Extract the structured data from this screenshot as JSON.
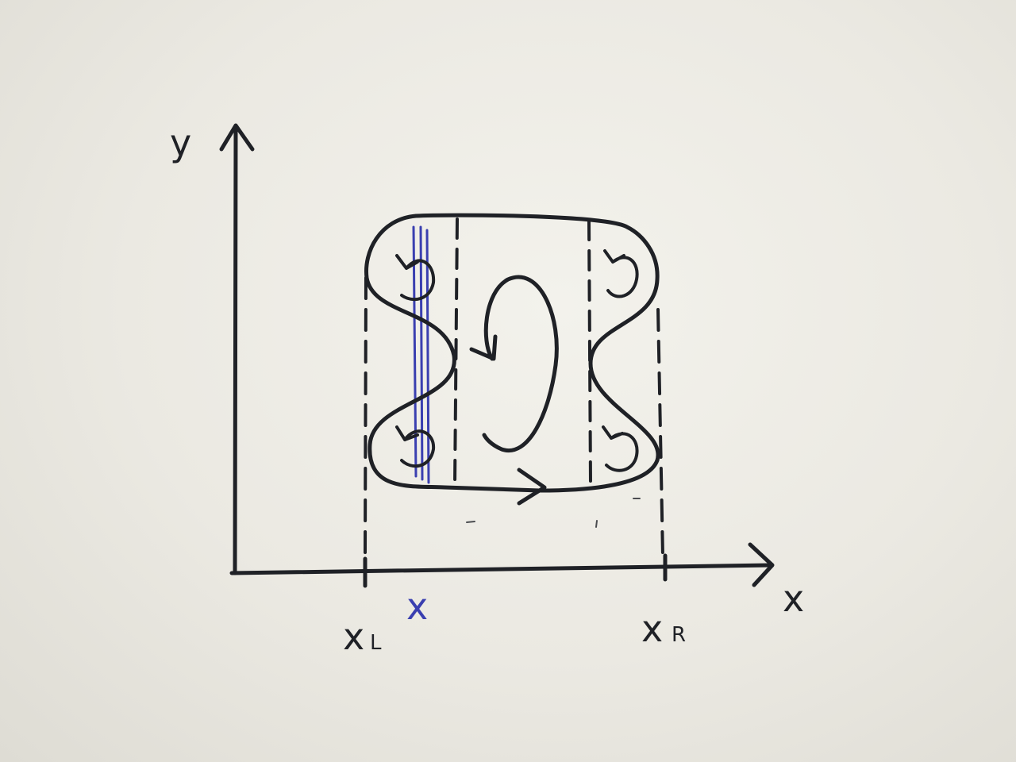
{
  "labels": {
    "y_axis": "y",
    "x_axis": "x",
    "x_left": "x",
    "x_left_sub": "L",
    "x_right": "x",
    "x_right_sub": "R",
    "x_marker": "x"
  },
  "colors": {
    "ink": "#1f2126",
    "marker": "#3a3fb0",
    "paper": "#efeee8"
  }
}
